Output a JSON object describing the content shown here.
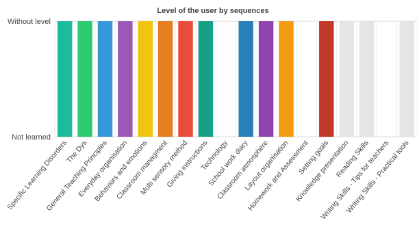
{
  "chart_data": {
    "type": "bar",
    "title": "Level of the user by sequences",
    "xlabel": "",
    "ylabel": "",
    "y_levels": [
      "Not learned",
      "Without level"
    ],
    "ylim": [
      0,
      1
    ],
    "grid": true,
    "categories": [
      "Specific Learning Disorders",
      "The Dys",
      "General Teaching Principles",
      "Everyday organisation",
      "Behaviors and emotions",
      "Classroom managment",
      "Multi sensory method",
      "Giving instructions",
      "Technology",
      "School work diary",
      "Classroom atmosphere",
      "Layout organisation",
      "Homework and Assessment",
      "Setting goals",
      "Knowledge presentation",
      "Reading Skills",
      "Writing Skills - Tips for teachers",
      "Writing Skills - Practical tools"
    ],
    "values": [
      1,
      1,
      1,
      1,
      1,
      1,
      1,
      1,
      0,
      1,
      1,
      1,
      0,
      1,
      1,
      1,
      0,
      1
    ],
    "colors": [
      "#1abc9c",
      "#2ecc71",
      "#3498db",
      "#9b59b6",
      "#f1c40f",
      "#e67e22",
      "#e74c3c",
      "#16a085",
      "#e5e5e5",
      "#2980b9",
      "#8e44ad",
      "#f39c12",
      "#e5e5e5",
      "#c0392b",
      "#e5e5e5",
      "#e5e5e5",
      "#e5e5e5",
      "#e5e5e5"
    ]
  }
}
